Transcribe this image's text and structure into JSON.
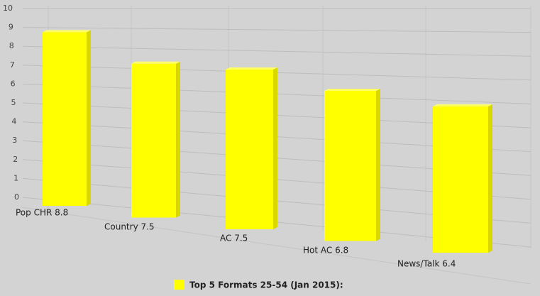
{
  "chart_data": {
    "type": "bar3d",
    "categories": [
      "Pop CHR 8.8",
      "Country 7.5",
      "AC 7.5",
      "Hot AC 6.8",
      "News/Talk 6.4"
    ],
    "series": [
      {
        "name": "Top 5 Formats 25-54 (Jan 2015):",
        "color": "#ffff00",
        "values": [
          8.8,
          7.5,
          7.5,
          6.8,
          6.4
        ]
      }
    ],
    "ylim": [
      0,
      10
    ],
    "yticks": [
      0,
      1,
      2,
      3,
      4,
      5,
      6,
      7,
      8,
      9,
      10
    ],
    "grid": true
  }
}
